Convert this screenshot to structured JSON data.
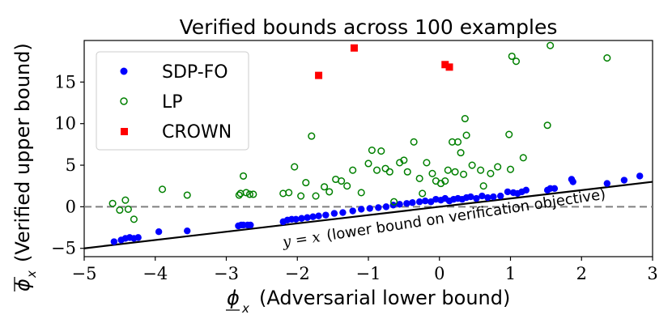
{
  "chart_data": {
    "type": "scatter",
    "title": "Verified bounds across 100 examples",
    "xlabel": "(Adversarial lower bound)",
    "xlabel_symbol": "ϕ",
    "xlabel_subscript": "x",
    "ylabel": "(Verified upper bound)",
    "ylabel_symbol": "ϕ",
    "ylabel_subscript": "x",
    "xlim": [
      -5,
      3
    ],
    "ylim": [
      -6,
      20
    ],
    "xticks": [
      -5,
      -4,
      -3,
      -2,
      -1,
      0,
      1,
      2,
      3
    ],
    "xtick_labels": [
      "−5",
      "−4",
      "−3",
      "−2",
      "−1",
      "0",
      "1",
      "2",
      "3"
    ],
    "yticks": [
      -5,
      0,
      5,
      10,
      15
    ],
    "ytick_labels": [
      "−5",
      "0",
      "5",
      "10",
      "15"
    ],
    "legend_position": "top-left",
    "colors": {
      "sdp": "#0000ff",
      "lp": "#008000",
      "crown": "#ff0000",
      "reference_line": "#000000",
      "zero_line": "#808080"
    },
    "series": [
      {
        "name": "SDP-FO",
        "marker": "filled-circle",
        "color": "#0000ff",
        "x": [
          -4.58,
          -4.48,
          -4.42,
          -4.36,
          -4.3,
          -4.24,
          -3.95,
          -3.55,
          -2.83,
          -2.79,
          -2.76,
          -2.7,
          -2.66,
          -2.2,
          -2.14,
          -2.08,
          -2.02,
          -1.94,
          -1.86,
          -1.78,
          -1.7,
          -1.6,
          -1.48,
          -1.36,
          -1.22,
          -1.1,
          -0.98,
          -0.86,
          -0.75,
          -0.65,
          -0.56,
          -0.46,
          -0.38,
          -0.28,
          -0.2,
          -0.12,
          -0.05,
          0.02,
          0.08,
          0.14,
          0.2,
          0.26,
          0.32,
          0.38,
          0.44,
          0.52,
          0.6,
          0.68,
          0.76,
          0.86,
          0.96,
          1.04,
          1.1,
          1.16,
          1.22,
          1.52,
          1.56,
          1.62,
          1.86,
          1.88,
          2.36,
          2.6,
          2.82
        ],
        "y": [
          -4.2,
          -4.0,
          -3.8,
          -3.7,
          -3.8,
          -3.7,
          -3.0,
          -2.9,
          -2.3,
          -2.2,
          -2.2,
          -2.2,
          -2.2,
          -1.8,
          -1.6,
          -1.5,
          -1.5,
          -1.4,
          -1.3,
          -1.2,
          -1.1,
          -1.0,
          -0.8,
          -0.7,
          -0.5,
          -0.3,
          -0.2,
          -0.1,
          0.0,
          0.2,
          0.3,
          0.4,
          0.5,
          0.6,
          0.7,
          0.6,
          0.9,
          0.8,
          1.0,
          0.7,
          0.9,
          1.0,
          0.9,
          1.1,
          1.2,
          1.0,
          1.3,
          1.1,
          1.2,
          1.3,
          1.8,
          1.7,
          1.6,
          1.8,
          2.0,
          2.0,
          2.2,
          2.2,
          3.3,
          3.0,
          2.8,
          3.2,
          3.7
        ]
      },
      {
        "name": "LP",
        "marker": "open-circle",
        "color": "#008000",
        "x": [
          -4.6,
          -4.5,
          -4.42,
          -4.38,
          -4.3,
          -3.9,
          -3.55,
          -2.82,
          -2.8,
          -2.76,
          -2.72,
          -2.67,
          -2.62,
          -2.2,
          -2.12,
          -2.04,
          -1.95,
          -1.88,
          -1.8,
          -1.74,
          -1.62,
          -1.55,
          -1.46,
          -1.38,
          -1.3,
          -1.22,
          -1.1,
          -1.0,
          -0.95,
          -0.88,
          -0.82,
          -0.76,
          -0.7,
          -0.64,
          -0.56,
          -0.5,
          -0.45,
          -0.36,
          -0.28,
          -0.24,
          -0.18,
          -0.1,
          -0.05,
          0.02,
          0.08,
          0.12,
          0.18,
          0.22,
          0.26,
          0.3,
          0.34,
          0.36,
          0.38,
          0.46,
          0.58,
          0.62,
          0.72,
          0.82,
          0.98,
          1.02,
          1.08,
          1.18,
          1.52,
          1.56,
          1.0,
          2.36
        ],
        "y": [
          0.4,
          -0.4,
          0.8,
          -0.3,
          -1.5,
          2.1,
          1.4,
          1.4,
          1.6,
          3.7,
          1.7,
          1.5,
          1.5,
          1.6,
          1.7,
          4.8,
          1.3,
          2.9,
          8.5,
          1.3,
          2.4,
          1.8,
          3.3,
          3.1,
          2.5,
          4.4,
          1.7,
          5.2,
          6.8,
          4.4,
          6.7,
          4.6,
          4.2,
          0.6,
          5.3,
          5.6,
          4.2,
          7.8,
          3.4,
          1.6,
          5.3,
          4.0,
          3.1,
          2.8,
          3.1,
          4.4,
          7.8,
          4.2,
          7.8,
          6.5,
          3.9,
          10.6,
          8.6,
          5.0,
          4.4,
          2.5,
          4.0,
          4.8,
          8.7,
          18.1,
          17.5,
          5.9,
          9.8,
          19.4,
          4.5,
          17.9
        ]
      },
      {
        "name": "CROWN",
        "marker": "square",
        "color": "#ff0000",
        "x": [
          -1.7,
          -1.2,
          0.08,
          0.14
        ],
        "y": [
          15.8,
          19.1,
          17.1,
          16.8
        ]
      }
    ],
    "reference_line": {
      "label_math": "y = x",
      "label_text": "(lower bound on verification objective)",
      "slope": 1,
      "intercept": 0
    },
    "zero_line": {
      "y": 0,
      "style": "dashed"
    }
  }
}
